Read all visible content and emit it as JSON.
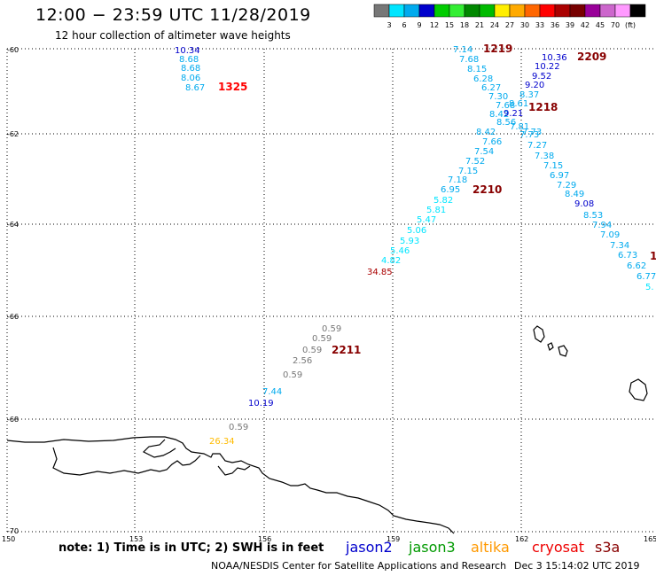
{
  "header": {
    "title": "12:00 − 23:59 UTC 11/28/2019",
    "subtitle": "12 hour collection of altimeter wave heights"
  },
  "color_scale": {
    "unit_label": "(ft)",
    "ticks": [
      "3",
      "6",
      "9",
      "12",
      "15",
      "18",
      "21",
      "24",
      "27",
      "30",
      "33",
      "36",
      "39",
      "42",
      "45",
      "70"
    ],
    "colors": [
      "#777777",
      "#00e5ff",
      "#00aaee",
      "#0000cc",
      "#00cc00",
      "#33ee33",
      "#008800",
      "#00bb00",
      "#ffee00",
      "#ffaa00",
      "#ff6600",
      "#ff0000",
      "#aa0000",
      "#770000",
      "#990099",
      "#cc66cc",
      "#ff99ff",
      "#000000"
    ]
  },
  "map": {
    "lon_range": [
      150,
      165
    ],
    "lat_range": [
      -70,
      -60
    ],
    "lon_ticks": [
      "150",
      "153",
      "156",
      "159",
      "162",
      "165"
    ],
    "lat_ticks": [
      "-60",
      "-62",
      "-64",
      "-66",
      "-68",
      "-70"
    ],
    "grid": "dotted"
  },
  "tracks": [
    {
      "id": "track-a",
      "time_label": "1325",
      "time_color": "#ff0000",
      "points": [
        {
          "v": "10.34",
          "c": "#0000cc"
        },
        {
          "v": "8.68",
          "c": "#00aaee"
        },
        {
          "v": "8.68",
          "c": "#00aaee"
        },
        {
          "v": "8.06",
          "c": "#00aaee"
        },
        {
          "v": "8.67",
          "c": "#00aaee"
        }
      ]
    },
    {
      "id": "track-b",
      "time_label": "1219",
      "time_color": "#880000",
      "points": [
        {
          "v": "7.14",
          "c": "#00aaee"
        },
        {
          "v": "7.68",
          "c": "#00aaee"
        },
        {
          "v": "8.15",
          "c": "#00aaee"
        },
        {
          "v": "6.28",
          "c": "#00aaee"
        },
        {
          "v": "6.27",
          "c": "#00aaee"
        },
        {
          "v": "7.30",
          "c": "#00aaee"
        },
        {
          "v": "7.68",
          "c": "#00aaee"
        },
        {
          "v": "8.42",
          "c": "#00aaee"
        },
        {
          "v": "8.56",
          "c": "#00aaee"
        },
        {
          "v": "7.73",
          "c": "#00aaee"
        }
      ]
    },
    {
      "id": "track-c",
      "time_label": "2209",
      "time_color": "#880000",
      "points": [
        {
          "v": "10.36",
          "c": "#0000cc"
        },
        {
          "v": "10.22",
          "c": "#0000cc"
        },
        {
          "v": "9.52",
          "c": "#0000cc"
        },
        {
          "v": "9.20",
          "c": "#0000cc"
        },
        {
          "v": "8.37",
          "c": "#00aaee"
        },
        {
          "v": "8.61",
          "c": "#00aaee"
        },
        {
          "v": "9.21",
          "c": "#0000cc"
        },
        {
          "v": "7.81",
          "c": "#00aaee"
        }
      ]
    },
    {
      "id": "track-d",
      "time_label": "1218",
      "time_color": "#880000",
      "points": [
        {
          "v": "8.42",
          "c": "#00aaee"
        },
        {
          "v": "7.66",
          "c": "#00aaee"
        },
        {
          "v": "7.54",
          "c": "#00aaee"
        },
        {
          "v": "7.52",
          "c": "#00aaee"
        },
        {
          "v": "7.15",
          "c": "#00aaee"
        },
        {
          "v": "7.18",
          "c": "#00aaee"
        },
        {
          "v": "6.95",
          "c": "#00aaee"
        },
        {
          "v": "5.82",
          "c": "#00e5ff"
        },
        {
          "v": "5.81",
          "c": "#00e5ff"
        },
        {
          "v": "5.47",
          "c": "#00e5ff"
        },
        {
          "v": "5.06",
          "c": "#00e5ff"
        },
        {
          "v": "5.93",
          "c": "#00e5ff"
        },
        {
          "v": "5.46",
          "c": "#00e5ff"
        },
        {
          "v": "4.82",
          "c": "#00e5ff"
        },
        {
          "v": "34.85",
          "c": "#aa0000"
        }
      ]
    },
    {
      "id": "track-e",
      "time_label": "2210",
      "time_color": "#880000",
      "points": [
        {
          "v": "7.73",
          "c": "#00aaee"
        },
        {
          "v": "7.27",
          "c": "#00aaee"
        },
        {
          "v": "7.38",
          "c": "#00aaee"
        },
        {
          "v": "7.15",
          "c": "#00aaee"
        },
        {
          "v": "6.97",
          "c": "#00aaee"
        },
        {
          "v": "7.29",
          "c": "#00aaee"
        },
        {
          "v": "8.49",
          "c": "#00aaee"
        },
        {
          "v": "9.08",
          "c": "#0000cc"
        },
        {
          "v": "8.53",
          "c": "#00aaee"
        },
        {
          "v": "7.94",
          "c": "#00aaee"
        },
        {
          "v": "7.09",
          "c": "#00aaee"
        },
        {
          "v": "7.34",
          "c": "#00aaee"
        },
        {
          "v": "6.73",
          "c": "#00aaee"
        },
        {
          "v": "6.62",
          "c": "#00aaee"
        },
        {
          "v": "6.77",
          "c": "#00aaee"
        },
        {
          "v": "5.",
          "c": "#00e5ff"
        }
      ]
    },
    {
      "id": "track-f",
      "time_label": "2211",
      "time_color": "#880000",
      "points": [
        {
          "v": "0.59",
          "c": "#777777"
        },
        {
          "v": "0.59",
          "c": "#777777"
        },
        {
          "v": "0.59",
          "c": "#777777"
        },
        {
          "v": "2.56",
          "c": "#777777"
        },
        {
          "v": "0.59",
          "c": "#777777"
        },
        {
          "v": "7.44",
          "c": "#00aaee"
        },
        {
          "v": "10.19",
          "c": "#0000cc"
        },
        {
          "v": "0.59",
          "c": "#777777"
        },
        {
          "v": "26.34",
          "c": "#ffbb00"
        }
      ]
    }
  ],
  "edge_label": {
    "v": "1",
    "c": "#880000"
  },
  "note": "note: 1) Time is in UTC; 2) SWH is in feet",
  "legend": [
    {
      "name": "jason2",
      "color": "#0000cc"
    },
    {
      "name": "jason3",
      "color": "#009900"
    },
    {
      "name": "altika",
      "color": "#ff9900"
    },
    {
      "name": "cryosat",
      "color": "#ee0000"
    },
    {
      "name": "s3a",
      "color": "#880000"
    }
  ],
  "footer": {
    "credit": "NOAA/NESDIS Center for Satellite Applications and Research",
    "timestamp": "Dec  3 15:14:02 UTC 2019"
  }
}
